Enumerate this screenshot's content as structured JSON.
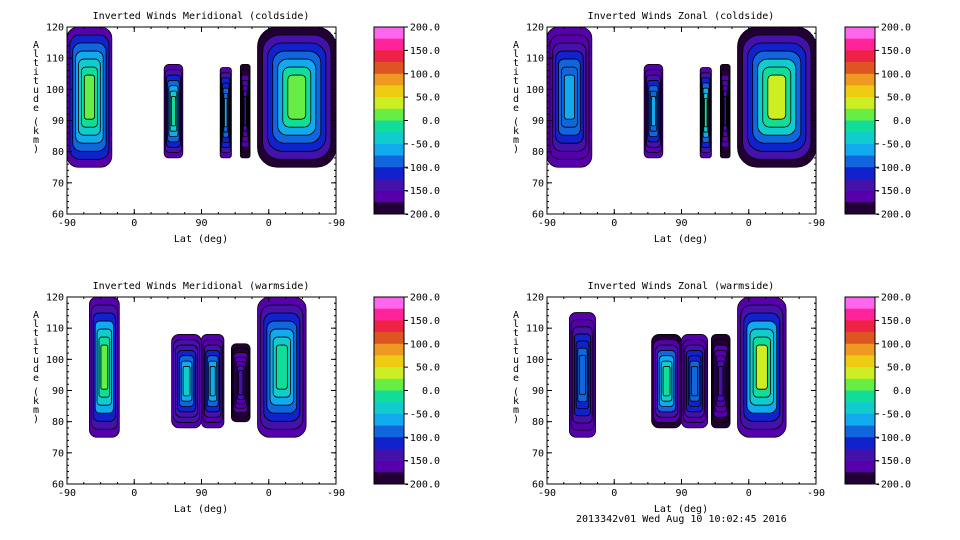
{
  "footer": "2013342v01 Wed Aug 10 10:02:45 2016",
  "colorbar": {
    "labels": [
      "200.0",
      "150.0",
      "100.0",
      "50.0",
      "0.0",
      "-50.0",
      "-100.0",
      "-150.0",
      "-200.0"
    ],
    "colors": [
      "#ff66ee",
      "#ff2299",
      "#ee2244",
      "#dd5522",
      "#ee9922",
      "#eecc11",
      "#ccee22",
      "#66ee44",
      "#11dd99",
      "#11cccc",
      "#11aaee",
      "#1166dd",
      "#1122cc",
      "#4411aa",
      "#5500aa",
      "#220033"
    ]
  },
  "chart_data": [
    {
      "type": "heatmap",
      "title": "Inverted Winds Meridional (coldside)",
      "xlabel": "Lat (deg)",
      "ylabel": "Altitude (km)",
      "x_ticks": [
        "-90",
        "0",
        "90",
        "0",
        "-90"
      ],
      "y_ticks": [
        "60",
        "70",
        "80",
        "90",
        "100",
        "110",
        "120"
      ],
      "ylim": [
        60,
        120
      ],
      "zlim": [
        -200,
        200
      ],
      "blobs": [
        {
          "lat_range": [
            -90,
            -30
          ],
          "alt_range": [
            75,
            120
          ],
          "value_range": [
            -150,
            40
          ]
        },
        {
          "lat_range": [
            40,
            65
          ],
          "alt_range": [
            78,
            108
          ],
          "value_range": [
            -170,
            20
          ]
        },
        {
          "lat_range": [
            115,
            130
          ],
          "alt_range": [
            78,
            107
          ],
          "value_range": [
            -150,
            -60
          ]
        },
        {
          "lat_range": [
            142,
            155
          ],
          "alt_range": [
            78,
            108
          ],
          "value_range": [
            -190,
            -120
          ]
        },
        {
          "lat_range": [
            165,
            270
          ],
          "alt_range": [
            75,
            120
          ],
          "value_range": [
            -180,
            40
          ]
        }
      ]
    },
    {
      "type": "heatmap",
      "title": "Inverted Winds Zonal (coldside)",
      "xlabel": "Lat (deg)",
      "ylabel": "Altitude (km)",
      "x_ticks": [
        "-90",
        "0",
        "90",
        "0",
        "-90"
      ],
      "y_ticks": [
        "60",
        "70",
        "80",
        "90",
        "100",
        "110",
        "120"
      ],
      "ylim": [
        60,
        120
      ],
      "zlim": [
        -200,
        200
      ],
      "blobs": [
        {
          "lat_range": [
            -90,
            -30
          ],
          "alt_range": [
            75,
            120
          ],
          "value_range": [
            -170,
            -40
          ]
        },
        {
          "lat_range": [
            40,
            65
          ],
          "alt_range": [
            78,
            108
          ],
          "value_range": [
            -170,
            -40
          ]
        },
        {
          "lat_range": [
            115,
            130
          ],
          "alt_range": [
            78,
            107
          ],
          "value_range": [
            -170,
            20
          ]
        },
        {
          "lat_range": [
            142,
            155
          ],
          "alt_range": [
            78,
            108
          ],
          "value_range": [
            -190,
            -120
          ]
        },
        {
          "lat_range": [
            165,
            270
          ],
          "alt_range": [
            75,
            120
          ],
          "value_range": [
            -180,
            60
          ]
        }
      ]
    },
    {
      "type": "heatmap",
      "title": "Inverted Winds Meridional (warmside)",
      "xlabel": "Lat (deg)",
      "ylabel": "Altitude (km)",
      "x_ticks": [
        "-90",
        "0",
        "90",
        "0",
        "-90"
      ],
      "y_ticks": [
        "60",
        "70",
        "80",
        "90",
        "100",
        "110",
        "120"
      ],
      "ylim": [
        60,
        120
      ],
      "zlim": [
        -200,
        200
      ],
      "blobs": [
        {
          "lat_range": [
            -60,
            -20
          ],
          "alt_range": [
            75,
            120
          ],
          "value_range": [
            -160,
            50
          ]
        },
        {
          "lat_range": [
            50,
            90
          ],
          "alt_range": [
            78,
            108
          ],
          "value_range": [
            -170,
            -20
          ]
        },
        {
          "lat_range": [
            90,
            120
          ],
          "alt_range": [
            78,
            108
          ],
          "value_range": [
            -170,
            -30
          ]
        },
        {
          "lat_range": [
            130,
            155
          ],
          "alt_range": [
            80,
            105
          ],
          "value_range": [
            -190,
            -130
          ]
        },
        {
          "lat_range": [
            165,
            230
          ],
          "alt_range": [
            75,
            120
          ],
          "value_range": [
            -160,
            20
          ]
        }
      ]
    },
    {
      "type": "heatmap",
      "title": "Inverted Winds Zonal (warmside)",
      "xlabel": "Lat (deg)",
      "ylabel": "Altitude (km)",
      "x_ticks": [
        "-90",
        "0",
        "90",
        "0",
        "-90"
      ],
      "y_ticks": [
        "60",
        "70",
        "80",
        "90",
        "100",
        "110",
        "120"
      ],
      "ylim": [
        60,
        120
      ],
      "zlim": [
        -200,
        200
      ],
      "blobs": [
        {
          "lat_range": [
            -60,
            -25
          ],
          "alt_range": [
            75,
            115
          ],
          "value_range": [
            -170,
            -60
          ]
        },
        {
          "lat_range": [
            50,
            90
          ],
          "alt_range": [
            78,
            108
          ],
          "value_range": [
            -180,
            10
          ]
        },
        {
          "lat_range": [
            90,
            125
          ],
          "alt_range": [
            78,
            108
          ],
          "value_range": [
            -170,
            -60
          ]
        },
        {
          "lat_range": [
            130,
            155
          ],
          "alt_range": [
            78,
            108
          ],
          "value_range": [
            -190,
            -120
          ]
        },
        {
          "lat_range": [
            165,
            230
          ],
          "alt_range": [
            75,
            120
          ],
          "value_range": [
            -170,
            60
          ]
        }
      ]
    }
  ]
}
